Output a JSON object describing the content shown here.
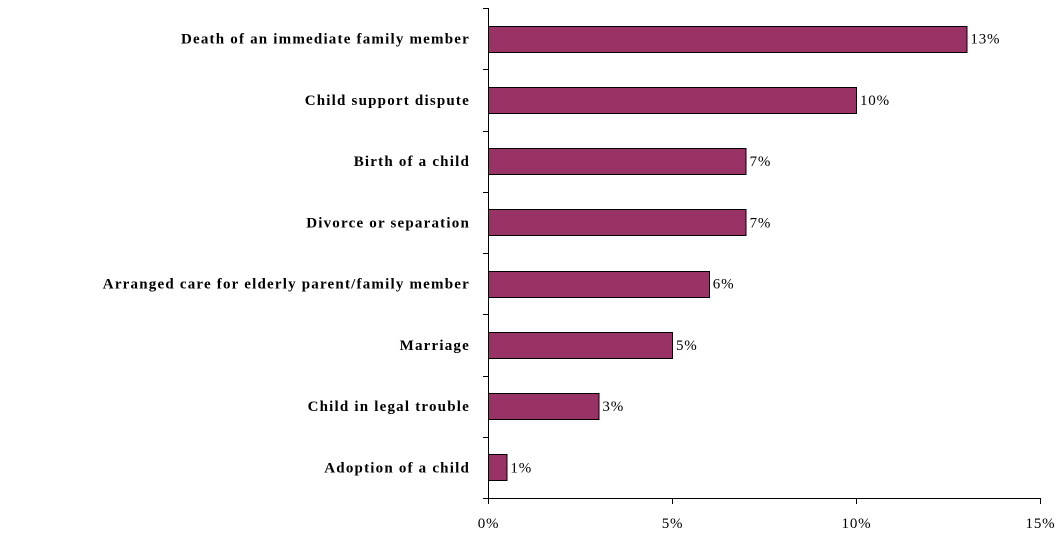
{
  "colors": {
    "bar": "#993366",
    "axis": "#000000",
    "background": "#ffffff"
  },
  "chart_data": {
    "type": "bar",
    "orientation": "horizontal",
    "categories": [
      "Death of an immediate family member",
      "Child support dispute",
      "Birth of a child",
      "Divorce or separation",
      "Arranged care for elderly parent/family member",
      "Marriage",
      "Child in legal trouble",
      "Adoption of a child"
    ],
    "values": [
      13,
      10,
      7,
      7,
      6,
      5,
      3,
      0.5
    ],
    "value_labels": [
      "13%",
      "10%",
      "7%",
      "7%",
      "6%",
      "5%",
      "3%",
      "1%"
    ],
    "xlim": [
      0,
      15
    ],
    "xticks": [
      0,
      5,
      10,
      15
    ],
    "xtick_labels": [
      "0%",
      "5%",
      "10%",
      "15%"
    ],
    "grid": false,
    "legend": "none"
  }
}
